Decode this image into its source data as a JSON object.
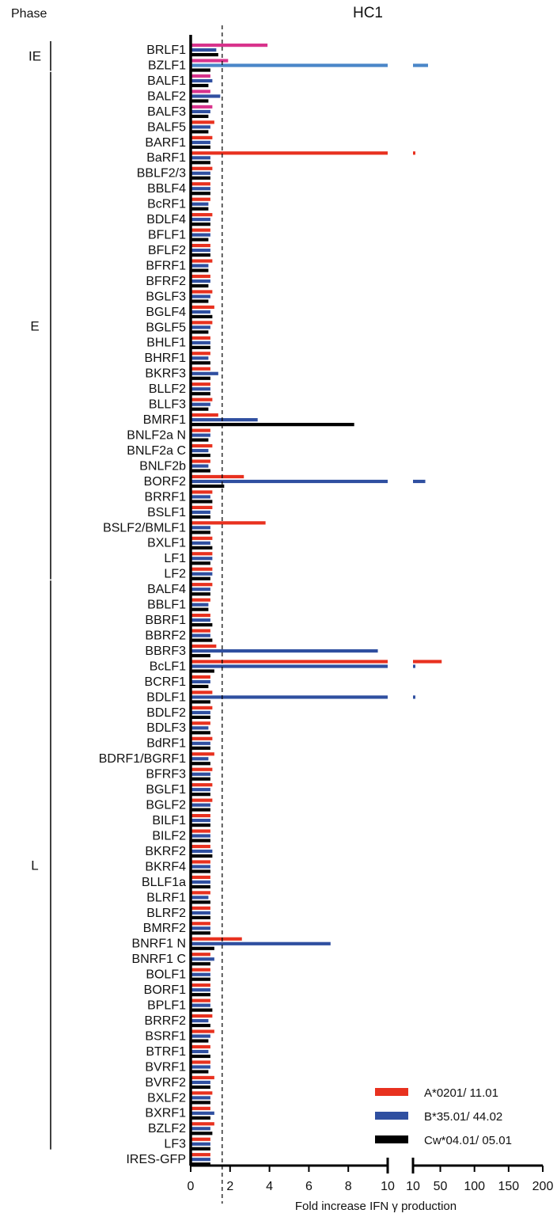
{
  "chart_data": {
    "type": "bar",
    "orientation": "horizontal",
    "title": "HC1",
    "phase_header": "Phase",
    "xlabel": "Fold increase IFN γ production",
    "x_axis": {
      "segment1": {
        "range": [
          0,
          10
        ],
        "ticks": [
          "0",
          "2",
          "4",
          "6",
          "8",
          "10"
        ]
      },
      "segment2": {
        "range": [
          10,
          200
        ],
        "ticks": [
          "10",
          "50",
          "100",
          "150",
          "200"
        ]
      }
    },
    "threshold_line": 1.6,
    "legend_position": "bottom-right",
    "series": [
      {
        "name": "A*0201/ 11.01",
        "color": "#e8311f"
      },
      {
        "name": "B*35.01/ 44.02",
        "color": "#2f4fa0"
      },
      {
        "name": "Cw*04.01/ 05.01",
        "color": "#000000"
      }
    ],
    "phases": [
      {
        "label": "IE",
        "from": "BRLF1",
        "to": "BZLF1"
      },
      {
        "label": "E",
        "from": "BALF1",
        "to": "LF2"
      },
      {
        "label": "L",
        "from": "BALF4",
        "to": "LF3"
      }
    ],
    "categories": [
      {
        "label": "BRLF1",
        "values": [
          3.9,
          1.3,
          1.4
        ],
        "colors": [
          "#d8338c",
          "#2f4fa0",
          "#000000"
        ]
      },
      {
        "label": "BZLF1",
        "values": [
          1.9,
          32,
          1.0
        ],
        "colors": [
          "#d8338c",
          "#4a86c8",
          "#000000"
        ]
      },
      {
        "label": "BALF1",
        "values": [
          1.0,
          1.1,
          0.9
        ],
        "colors": [
          "#d8338c",
          "#2f4fa0",
          "#000000"
        ]
      },
      {
        "label": "BALF2",
        "values": [
          1.0,
          1.5,
          0.9
        ],
        "colors": [
          "#d8338c",
          "#2f4fa0",
          "#000000"
        ]
      },
      {
        "label": "BALF3",
        "values": [
          1.1,
          1.0,
          0.9
        ],
        "colors": [
          "#d8338c",
          "#2f4fa0",
          "#000000"
        ]
      },
      {
        "label": "BALF5",
        "values": [
          1.2,
          1.0,
          0.9
        ]
      },
      {
        "label": "BARF1",
        "values": [
          1.1,
          1.0,
          1.0
        ]
      },
      {
        "label": "BaRF1",
        "values": [
          10.5,
          1.0,
          1.0
        ]
      },
      {
        "label": "BBLF2/3",
        "values": [
          1.1,
          1.0,
          1.0
        ]
      },
      {
        "label": "BBLF4",
        "values": [
          1.0,
          1.0,
          1.0
        ]
      },
      {
        "label": "BcRF1",
        "values": [
          1.0,
          0.9,
          0.9
        ]
      },
      {
        "label": "BDLF4",
        "values": [
          1.1,
          1.0,
          1.0
        ]
      },
      {
        "label": "BFLF1",
        "values": [
          1.0,
          1.0,
          0.9
        ]
      },
      {
        "label": "BFLF2",
        "values": [
          1.0,
          1.0,
          1.0
        ]
      },
      {
        "label": "BFRF1",
        "values": [
          1.1,
          0.9,
          0.9
        ]
      },
      {
        "label": "BFRF2",
        "values": [
          1.0,
          1.0,
          0.9
        ]
      },
      {
        "label": "BGLF3",
        "values": [
          1.1,
          1.0,
          0.9
        ]
      },
      {
        "label": "BGLF4",
        "values": [
          1.2,
          1.0,
          1.1
        ]
      },
      {
        "label": "BGLF5",
        "values": [
          1.1,
          1.0,
          0.9
        ]
      },
      {
        "label": "BHLF1",
        "values": [
          1.0,
          1.0,
          1.0
        ]
      },
      {
        "label": "BHRF1",
        "values": [
          1.0,
          0.9,
          1.0
        ]
      },
      {
        "label": "BKRF3",
        "values": [
          1.0,
          1.4,
          1.0
        ]
      },
      {
        "label": "BLLF2",
        "values": [
          1.0,
          1.0,
          1.0
        ]
      },
      {
        "label": "BLLF3",
        "values": [
          1.1,
          1.0,
          0.9
        ]
      },
      {
        "label": "BMRF1",
        "values": [
          1.4,
          3.4,
          8.3
        ]
      },
      {
        "label": "BNLF2a N",
        "values": [
          1.0,
          1.0,
          0.9
        ]
      },
      {
        "label": "BNLF2a C",
        "values": [
          1.1,
          0.9,
          1.0
        ]
      },
      {
        "label": "BNLF2b",
        "values": [
          1.0,
          0.9,
          1.0
        ]
      },
      {
        "label": "BORF2",
        "values": [
          2.7,
          28,
          1.7
        ]
      },
      {
        "label": "BRRF1",
        "values": [
          1.1,
          1.0,
          1.1
        ]
      },
      {
        "label": "BSLF1",
        "values": [
          1.1,
          1.0,
          1.0
        ]
      },
      {
        "label": "BSLF2/BMLF1",
        "values": [
          3.8,
          1.0,
          1.0
        ]
      },
      {
        "label": "BXLF1",
        "values": [
          1.1,
          1.0,
          1.1
        ]
      },
      {
        "label": "LF1",
        "values": [
          1.1,
          1.1,
          1.0
        ]
      },
      {
        "label": "LF2",
        "values": [
          1.1,
          1.1,
          1.0
        ]
      },
      {
        "label": "BALF4",
        "values": [
          1.1,
          1.0,
          1.0
        ]
      },
      {
        "label": "BBLF1",
        "values": [
          1.0,
          0.9,
          0.9
        ]
      },
      {
        "label": "BBRF1",
        "values": [
          1.0,
          1.0,
          1.1
        ]
      },
      {
        "label": "BBRF2",
        "values": [
          1.0,
          1.0,
          1.1
        ]
      },
      {
        "label": "BBRF3",
        "values": [
          1.3,
          9.5,
          1.0
        ]
      },
      {
        "label": "BcLF1",
        "values": [
          52,
          12,
          1.2
        ]
      },
      {
        "label": "BCRF1",
        "values": [
          1.0,
          1.0,
          0.9
        ]
      },
      {
        "label": "BDLF1",
        "values": [
          1.1,
          11,
          1.0
        ]
      },
      {
        "label": "BDLF2",
        "values": [
          1.1,
          1.0,
          1.0
        ]
      },
      {
        "label": "BDLF3",
        "values": [
          1.0,
          0.9,
          1.0
        ]
      },
      {
        "label": "BdRF1",
        "values": [
          1.1,
          1.0,
          1.0
        ]
      },
      {
        "label": "BDRF1/BGRF1",
        "values": [
          1.2,
          0.9,
          1.0
        ]
      },
      {
        "label": "BFRF3",
        "values": [
          1.1,
          1.0,
          1.0
        ]
      },
      {
        "label": "BGLF1",
        "values": [
          1.1,
          1.0,
          1.0
        ]
      },
      {
        "label": "BGLF2",
        "values": [
          1.1,
          1.0,
          1.0
        ]
      },
      {
        "label": "BILF1",
        "values": [
          1.0,
          1.0,
          1.0
        ]
      },
      {
        "label": "BILF2",
        "values": [
          1.0,
          1.0,
          1.0
        ]
      },
      {
        "label": "BKRF2",
        "values": [
          1.0,
          1.1,
          1.1
        ]
      },
      {
        "label": "BKRF4",
        "values": [
          1.0,
          1.0,
          1.0
        ]
      },
      {
        "label": "BLLF1a",
        "values": [
          1.0,
          1.0,
          1.0
        ]
      },
      {
        "label": "BLRF1",
        "values": [
          1.0,
          0.9,
          1.0
        ]
      },
      {
        "label": "BLRF2",
        "values": [
          1.0,
          1.0,
          1.0
        ]
      },
      {
        "label": "BMRF2",
        "values": [
          1.0,
          1.0,
          1.0
        ]
      },
      {
        "label": "BNRF1 N",
        "values": [
          2.6,
          7.1,
          1.2
        ]
      },
      {
        "label": "BNRF1 C",
        "values": [
          1.0,
          1.2,
          1.0
        ]
      },
      {
        "label": "BOLF1",
        "values": [
          1.0,
          1.0,
          1.0
        ]
      },
      {
        "label": "BORF1",
        "values": [
          1.0,
          1.0,
          1.0
        ]
      },
      {
        "label": "BPLF1",
        "values": [
          1.0,
          1.0,
          1.1
        ]
      },
      {
        "label": "BRRF2",
        "values": [
          1.1,
          0.9,
          1.0
        ]
      },
      {
        "label": "BSRF1",
        "values": [
          1.2,
          1.0,
          0.9
        ]
      },
      {
        "label": "BTRF1",
        "values": [
          1.0,
          0.9,
          1.0
        ]
      },
      {
        "label": "BVRF1",
        "values": [
          1.0,
          1.0,
          0.9
        ]
      },
      {
        "label": "BVRF2",
        "values": [
          1.2,
          1.0,
          1.0
        ]
      },
      {
        "label": "BXLF2",
        "values": [
          1.1,
          1.0,
          1.0
        ]
      },
      {
        "label": "BXRF1",
        "values": [
          1.0,
          1.2,
          1.0
        ]
      },
      {
        "label": "BZLF2",
        "values": [
          1.2,
          1.0,
          1.1
        ]
      },
      {
        "label": "LF3",
        "values": [
          1.0,
          1.0,
          1.0
        ]
      },
      {
        "label": "IRES-GFP",
        "values": [
          1.0,
          1.0,
          1.0
        ]
      }
    ]
  }
}
